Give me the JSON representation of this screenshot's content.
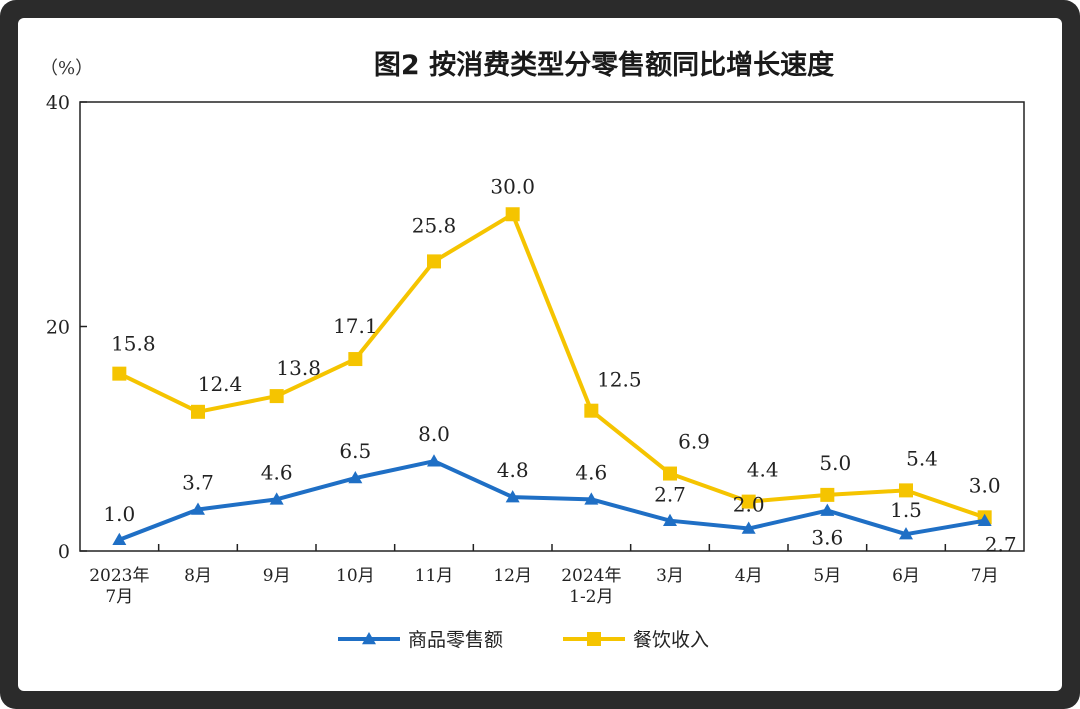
{
  "chart_data": {
    "type": "line",
    "title": "图2  按消费类型分零售额同比增长速度",
    "unit_label": "（%）",
    "ylim": [
      0,
      40
    ],
    "yticks": [
      "0",
      "20",
      "40"
    ],
    "categories": [
      "2023年\n7月",
      "8月",
      "9月",
      "10月",
      "11月",
      "12月",
      "2024年\n1-2月",
      "3月",
      "4月",
      "5月",
      "6月",
      "7月"
    ],
    "series": [
      {
        "name": "商品零售额",
        "color": "#1f6fc5",
        "marker": "triangle",
        "values": [
          1.0,
          3.7,
          4.6,
          6.5,
          8.0,
          4.8,
          4.6,
          2.7,
          2.0,
          3.6,
          1.5,
          2.7
        ],
        "labels": [
          "1.0",
          "3.7",
          "4.6",
          "6.5",
          "8.0",
          "4.8",
          "4.6",
          "2.7",
          "2.0",
          "3.6",
          "1.5",
          "2.7"
        ]
      },
      {
        "name": "餐饮收入",
        "color": "#f5c400",
        "marker": "square",
        "values": [
          15.8,
          12.4,
          13.8,
          17.1,
          25.8,
          30.0,
          12.5,
          6.9,
          4.4,
          5.0,
          5.4,
          3.0
        ],
        "labels": [
          "15.8",
          "12.4",
          "13.8",
          "17.1",
          "25.8",
          "30.0",
          "12.5",
          "6.9",
          "4.4",
          "5.0",
          "5.4",
          "3.0"
        ]
      }
    ],
    "grid": false,
    "legend": "bottom"
  }
}
